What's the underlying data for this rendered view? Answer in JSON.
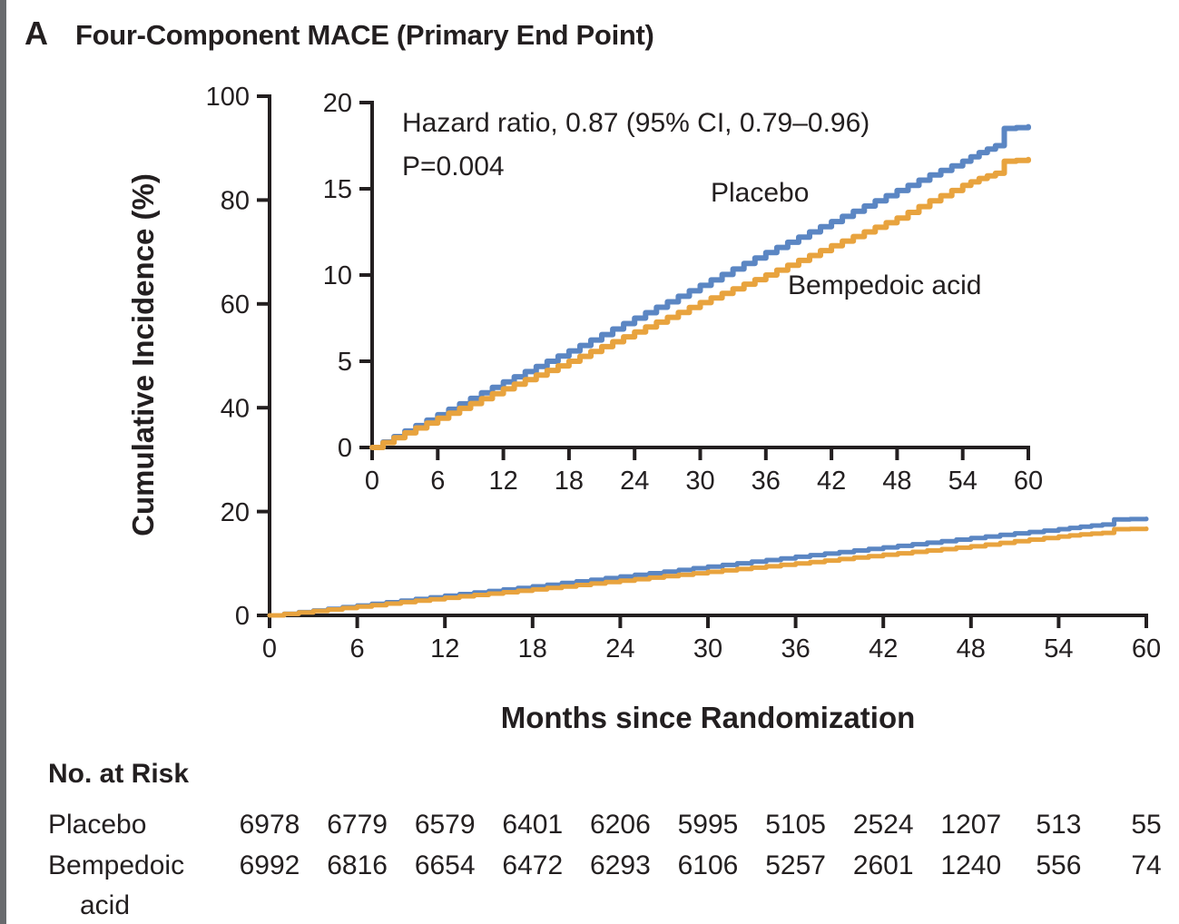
{
  "panel": {
    "letter": "A",
    "title": "Four-Component MACE (Primary End Point)"
  },
  "chart_data": {
    "type": "line",
    "title": "Four-Component MACE (Primary End Point)",
    "xlabel": "Months since Randomization",
    "ylabel": "Cumulative Incidence (%)",
    "x_ticks": [
      0,
      6,
      12,
      18,
      24,
      30,
      36,
      42,
      48,
      54,
      60
    ],
    "main_axis": {
      "xlim": [
        0,
        60
      ],
      "ylim": [
        0,
        100
      ],
      "y_ticks": [
        0,
        20,
        40,
        60,
        80,
        100
      ]
    },
    "inset_axis": {
      "xlim": [
        0,
        60
      ],
      "ylim": [
        0,
        20
      ],
      "y_ticks": [
        0,
        5,
        10,
        15,
        20
      ]
    },
    "annotation": {
      "line1": "Hazard ratio, 0.87 (95% CI, 0.79–0.96)",
      "line2": "P=0.004"
    },
    "legend_position": "inline-labels",
    "grid": false,
    "series": [
      {
        "name": "Placebo",
        "color": "#5b86c3",
        "points": [
          [
            0,
            0
          ],
          [
            3,
            0.95
          ],
          [
            6,
            1.9
          ],
          [
            9,
            2.85
          ],
          [
            12,
            3.8
          ],
          [
            15,
            4.7
          ],
          [
            18,
            5.6
          ],
          [
            21,
            6.55
          ],
          [
            24,
            7.5
          ],
          [
            27,
            8.45
          ],
          [
            30,
            9.4
          ],
          [
            33,
            10.35
          ],
          [
            36,
            11.3
          ],
          [
            39,
            12.2
          ],
          [
            42,
            13.1
          ],
          [
            45,
            14.0
          ],
          [
            48,
            14.9
          ],
          [
            51,
            15.8
          ],
          [
            54,
            16.6
          ],
          [
            55.5,
            17.1
          ],
          [
            57,
            17.5
          ],
          [
            57.8,
            18.5
          ],
          [
            60,
            18.6
          ]
        ]
      },
      {
        "name": "Bempedoic acid",
        "color": "#e8a33e",
        "points": [
          [
            0,
            0
          ],
          [
            3,
            0.85
          ],
          [
            6,
            1.7
          ],
          [
            9,
            2.55
          ],
          [
            12,
            3.4
          ],
          [
            15,
            4.2
          ],
          [
            18,
            5.0
          ],
          [
            21,
            5.85
          ],
          [
            24,
            6.7
          ],
          [
            27,
            7.55
          ],
          [
            30,
            8.4
          ],
          [
            33,
            9.2
          ],
          [
            36,
            10.0
          ],
          [
            39,
            10.85
          ],
          [
            42,
            11.7
          ],
          [
            45,
            12.5
          ],
          [
            48,
            13.3
          ],
          [
            51,
            14.3
          ],
          [
            54,
            15.2
          ],
          [
            55.5,
            15.6
          ],
          [
            57,
            15.9
          ],
          [
            57.8,
            16.6
          ],
          [
            60,
            16.7
          ]
        ]
      }
    ]
  },
  "risk_table": {
    "title": "No. at Risk",
    "months": [
      0,
      6,
      12,
      18,
      24,
      30,
      36,
      42,
      48,
      54,
      60
    ],
    "rows": [
      {
        "label": "Placebo",
        "label2": "",
        "values": [
          6978,
          6779,
          6579,
          6401,
          6206,
          5995,
          5105,
          2524,
          1207,
          513,
          55
        ]
      },
      {
        "label": "Bempedoic",
        "label2": "acid",
        "values": [
          6992,
          6816,
          6654,
          6472,
          6293,
          6106,
          5257,
          2601,
          1240,
          556,
          74
        ]
      }
    ]
  },
  "colors": {
    "placebo": "#5b86c3",
    "bempedoic": "#e8a33e",
    "axis": "#231f20",
    "side_strip": "#696b6e"
  }
}
